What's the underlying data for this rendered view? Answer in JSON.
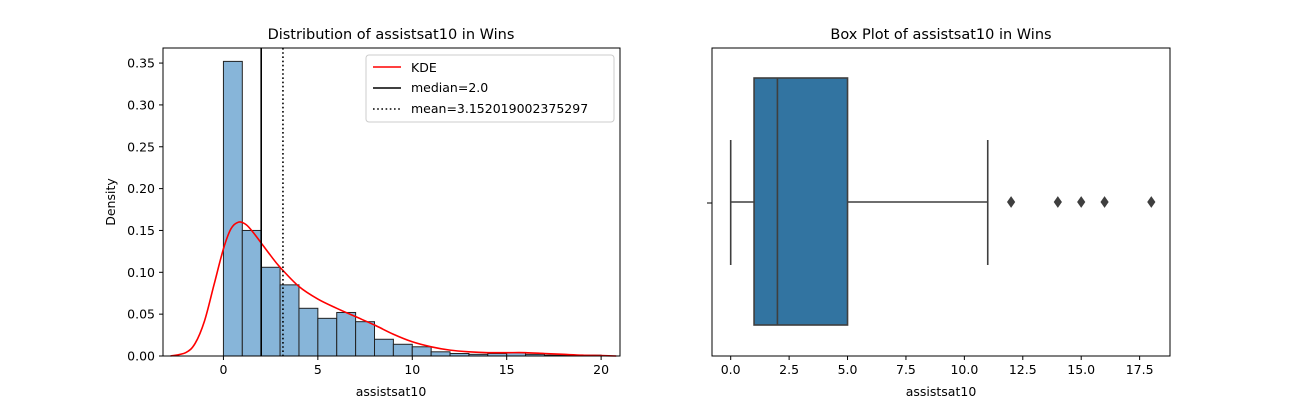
{
  "chart_data": [
    {
      "type": "bar",
      "title": "Distribution of assistsat10 in Wins",
      "xlabel": "assistsat10",
      "ylabel": "Density",
      "xlim": [
        -3.2,
        21.0
      ],
      "ylim": [
        0,
        0.368
      ],
      "xticks": [
        0,
        5,
        10,
        15,
        20
      ],
      "xtick_labels": [
        "0",
        "5",
        "10",
        "15",
        "20"
      ],
      "yticks": [
        0,
        0.05,
        0.1,
        0.15,
        0.2,
        0.25,
        0.3,
        0.35
      ],
      "ytick_labels": [
        "0.00",
        "0.05",
        "0.10",
        "0.15",
        "0.20",
        "0.25",
        "0.30",
        "0.35"
      ],
      "bin_width": 1.0,
      "bin_edges": [
        0,
        1,
        2,
        3,
        4,
        5,
        6,
        7,
        8,
        9,
        10,
        11,
        12,
        13,
        14,
        15,
        16,
        17,
        18,
        19,
        20
      ],
      "densities": [
        0.352,
        0.15,
        0.106,
        0.085,
        0.057,
        0.045,
        0.052,
        0.041,
        0.02,
        0.014,
        0.011,
        0.005,
        0.003,
        0.002,
        0.003,
        0.004,
        0.002,
        0.001,
        0.001,
        0.001
      ],
      "bar_color": "#87b5d9",
      "kde": {
        "label": "KDE",
        "color": "#ff0000",
        "x": [
          -2.8,
          -2.0,
          -1.5,
          -1.0,
          -0.5,
          0.0,
          0.4,
          0.8,
          1.2,
          1.6,
          2.0,
          2.5,
          3.0,
          4.0,
          5.0,
          6.0,
          7.0,
          8.0,
          9.0,
          10.0,
          11.0,
          12.0,
          13.0,
          14.0,
          15.0,
          16.0,
          17.0,
          18.0,
          19.0,
          20.0,
          20.8
        ],
        "y": [
          0.0,
          0.004,
          0.015,
          0.042,
          0.085,
          0.128,
          0.152,
          0.16,
          0.157,
          0.147,
          0.135,
          0.12,
          0.106,
          0.083,
          0.068,
          0.057,
          0.047,
          0.037,
          0.026,
          0.017,
          0.011,
          0.007,
          0.005,
          0.004,
          0.004,
          0.004,
          0.003,
          0.002,
          0.001,
          0.0005,
          0.0
        ]
      },
      "median": {
        "label": "median=2.0",
        "value": 2.0
      },
      "mean": {
        "label": "mean=3.152019002375297",
        "value": 3.152019002375297
      },
      "legend": {
        "placement": "upper right"
      }
    },
    {
      "type": "box",
      "title": "Box Plot of assistsat10 in Wins",
      "xlabel": "assistsat10",
      "xlim": [
        -0.8,
        18.8
      ],
      "xticks": [
        0,
        2.5,
        5,
        7.5,
        10,
        12.5,
        15,
        17.5
      ],
      "xtick_labels": [
        "0.0",
        "2.5",
        "5.0",
        "7.5",
        "10.0",
        "12.5",
        "15.0",
        "17.5"
      ],
      "min": 0,
      "q1": 1,
      "median": 2,
      "q3": 5,
      "max": 11,
      "outliers": [
        12,
        14,
        15,
        16,
        18
      ],
      "box_color": "#3274a1"
    }
  ]
}
